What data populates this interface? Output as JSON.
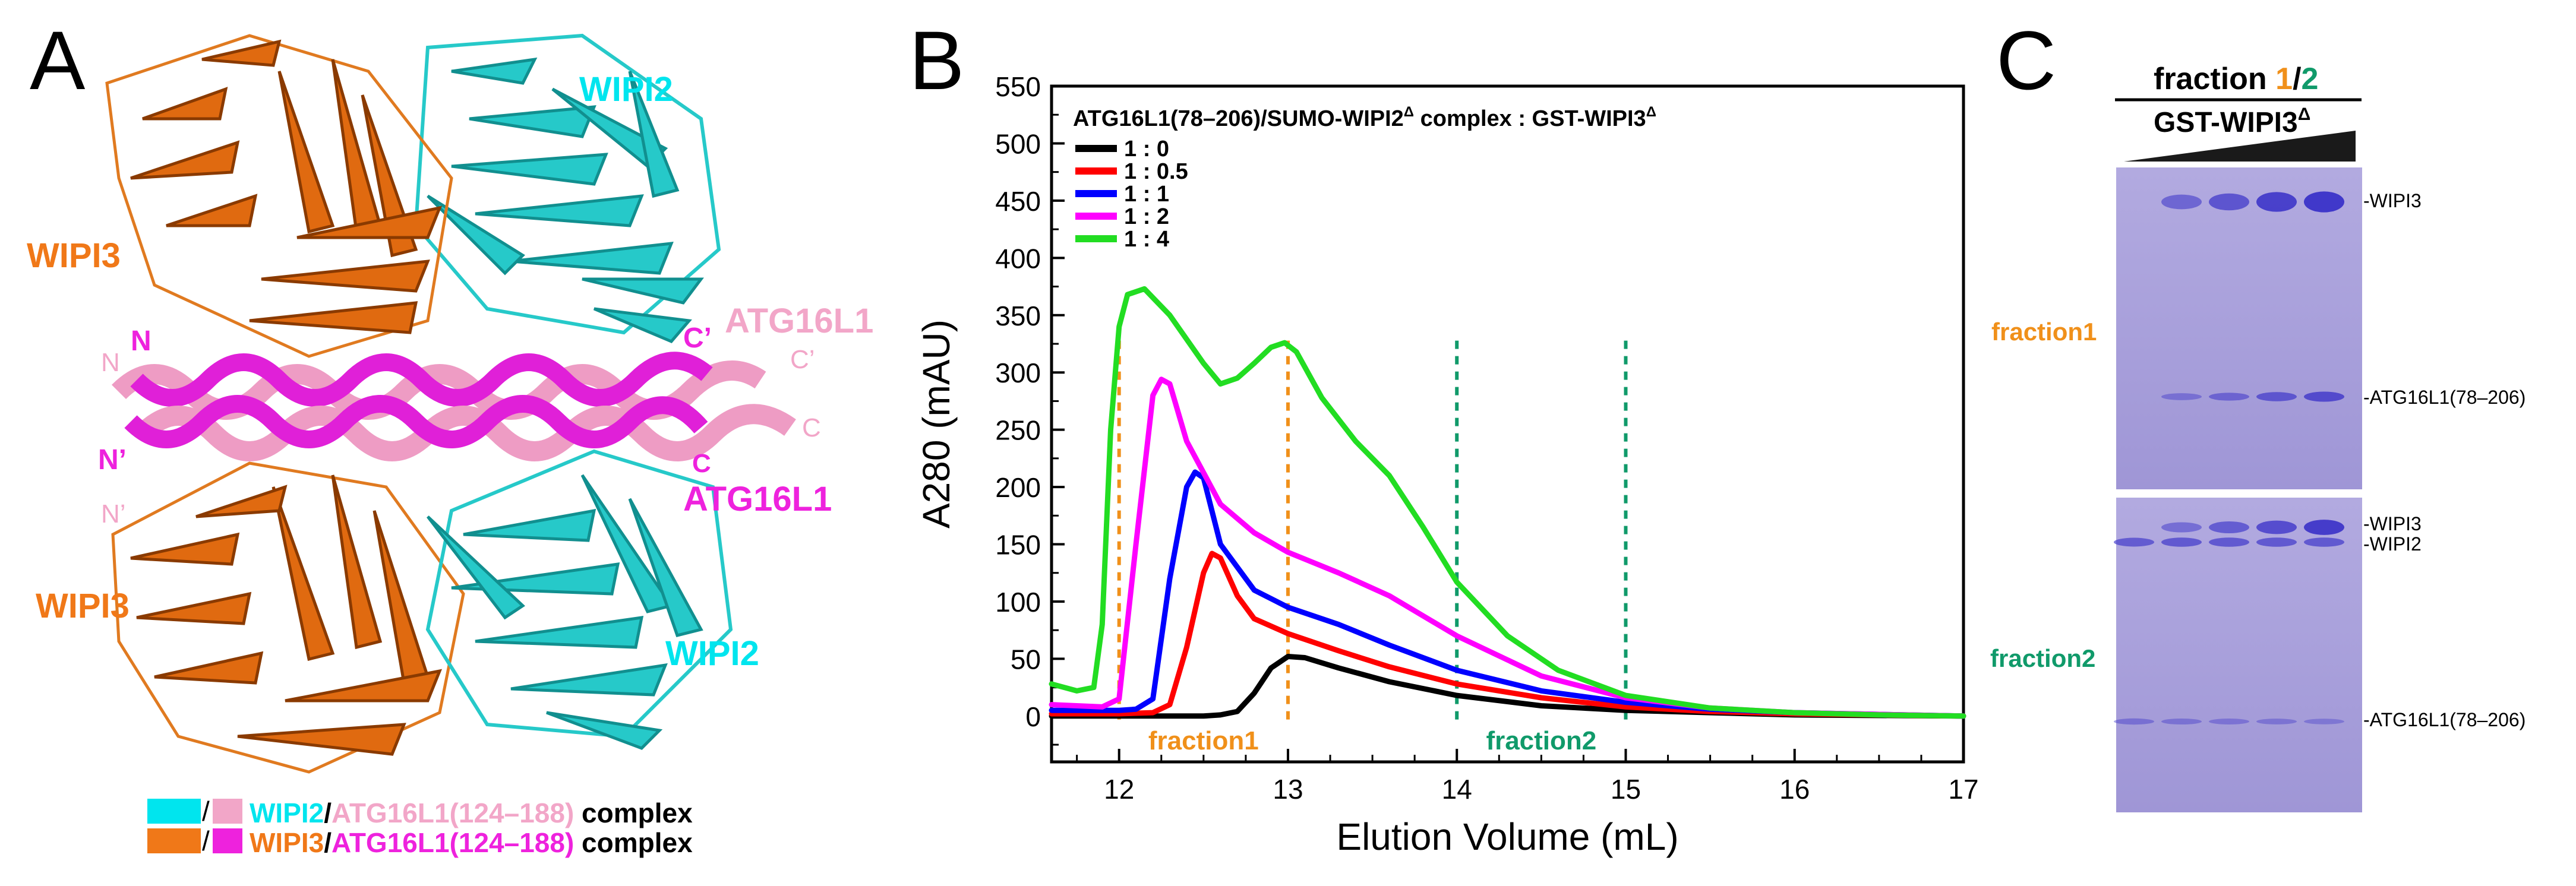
{
  "panel_labels": {
    "a": "A",
    "b": "B",
    "c": "C"
  },
  "panel_a": {
    "labels": {
      "wipi2_top": "WIPI2",
      "wipi3_top": "WIPI3",
      "wipi3_bottom": "WIPI3",
      "wipi2_bottom": "WIPI2",
      "atg16l1_pink": "ATG16L1",
      "atg16l1_magenta": "ATG16L1",
      "n_magenta": "N",
      "n_pink": "N",
      "n_prime_magenta": "N’",
      "n_prime_pink": "N’",
      "c_prime_magenta": "C’",
      "c_prime_pink": "C’",
      "c_pink": "C",
      "c_magenta": "C"
    },
    "legend": [
      {
        "protein": "WIPI2",
        "slash": "/",
        "peptide": "ATG16L1(124–188)",
        "suffix": " complex",
        "protein_color": "#00e5ee",
        "peptide_color": "#f2a6c8"
      },
      {
        "protein": "WIPI3",
        "slash": "/",
        "peptide": "ATG16L1(124–188)",
        "suffix": " complex",
        "protein_color": "#f07818",
        "peptide_color": "#ee22dd"
      }
    ],
    "colors": {
      "wipi2": "#26c9c9",
      "wipi3": "#e06a10",
      "atg_pink": "#ee9cc4",
      "atg_magenta": "#e020d8"
    }
  },
  "chart_data": {
    "type": "line",
    "title": "ATG16L1(78–206)/SUMO-WIPI2",
    "title_sup1": "Δ",
    "title_mid": " complex : GST-WIPI3",
    "title_sup2": "Δ",
    "xlabel": "Elution Volume (mL)",
    "ylabel": "A280 (mAU)",
    "xlim": [
      11.6,
      17
    ],
    "ylim": [
      -40,
      550
    ],
    "xticks": [
      12,
      13,
      14,
      15,
      16,
      17
    ],
    "yticks": [
      0,
      50,
      100,
      150,
      200,
      250,
      300,
      350,
      400,
      450,
      500,
      550
    ],
    "series": [
      {
        "name": "1 : 0",
        "color": "#000000",
        "x": [
          11.6,
          12.5,
          12.6,
          12.7,
          12.8,
          12.9,
          13.0,
          13.1,
          13.3,
          13.6,
          14.0,
          14.5,
          15.0,
          15.5,
          16.0,
          17.0
        ],
        "y": [
          0,
          0,
          1,
          4,
          20,
          42,
          52,
          51,
          42,
          30,
          18,
          9,
          5,
          3,
          1,
          0
        ]
      },
      {
        "name": "1 : 0.5",
        "color": "#ff0000",
        "x": [
          11.6,
          12.0,
          12.2,
          12.3,
          12.4,
          12.5,
          12.55,
          12.6,
          12.7,
          12.8,
          13.0,
          13.3,
          13.6,
          14.0,
          14.5,
          15.0,
          15.5,
          16.0,
          17.0
        ],
        "y": [
          2,
          2,
          3,
          10,
          60,
          125,
          142,
          138,
          105,
          85,
          72,
          57,
          43,
          28,
          16,
          8,
          4,
          2,
          0
        ]
      },
      {
        "name": "1 : 1",
        "color": "#0000ff",
        "x": [
          11.6,
          12.0,
          12.1,
          12.2,
          12.3,
          12.4,
          12.45,
          12.5,
          12.6,
          12.8,
          13.0,
          13.3,
          13.6,
          14.0,
          14.5,
          15.0,
          15.5,
          16.0,
          17.0
        ],
        "y": [
          5,
          5,
          6,
          15,
          120,
          200,
          213,
          208,
          150,
          110,
          95,
          80,
          62,
          40,
          22,
          12,
          6,
          3,
          0
        ]
      },
      {
        "name": "1 : 2",
        "color": "#ff00ff",
        "x": [
          11.6,
          11.9,
          12.0,
          12.1,
          12.2,
          12.25,
          12.3,
          12.4,
          12.6,
          12.8,
          13.0,
          13.3,
          13.6,
          14.0,
          14.5,
          15.0,
          15.5,
          16.0,
          17.0
        ],
        "y": [
          10,
          8,
          15,
          150,
          280,
          294,
          290,
          240,
          185,
          160,
          143,
          125,
          105,
          70,
          35,
          16,
          7,
          3,
          0
        ]
      },
      {
        "name": "1 : 4",
        "color": "#22dd22",
        "x": [
          11.6,
          11.75,
          11.85,
          11.9,
          11.95,
          12.0,
          12.05,
          12.15,
          12.3,
          12.5,
          12.6,
          12.7,
          12.8,
          12.9,
          12.98,
          13.05,
          13.2,
          13.4,
          13.6,
          13.8,
          14.0,
          14.3,
          14.6,
          15.0,
          15.5,
          16.0,
          16.5,
          17.0
        ],
        "y": [
          28,
          22,
          25,
          80,
          250,
          340,
          368,
          373,
          350,
          308,
          290,
          295,
          308,
          322,
          326,
          318,
          278,
          240,
          210,
          165,
          117,
          70,
          40,
          18,
          7,
          3,
          1,
          0
        ]
      }
    ],
    "fractions": [
      {
        "name": "fraction1",
        "label": "fraction1",
        "x_start": 12,
        "x_end": 13,
        "color": "#f0901a"
      },
      {
        "name": "fraction2",
        "label": "fraction2",
        "x_start": 14,
        "x_end": 15,
        "color": "#109a6a"
      }
    ],
    "legend_position": "top-left"
  },
  "panel_c": {
    "header_word": "fraction ",
    "header_1": "1",
    "header_slash": "/",
    "header_2": "2",
    "header_1_color": "#f0901a",
    "header_2_color": "#109a6a",
    "gradient_label": "GST-WIPI3",
    "gradient_sup": "Δ",
    "fraction1_label": "fraction1",
    "fraction2_label": "fraction2",
    "bands_top": [
      "-WIPI3",
      "-ATG16L1(78–206)"
    ],
    "bands_bottom": [
      "-WIPI3",
      "-WIPI2",
      "-ATG16L1(78–206)"
    ],
    "gel_color": "#a49ad8",
    "band_color": "#3a32c8",
    "lane_intensity_wipi3": [
      0,
      0.45,
      0.65,
      0.9,
      1.0
    ],
    "lane_intensity_atg_top": [
      0,
      0.25,
      0.4,
      0.6,
      0.75
    ],
    "lane_intensity_wipi3_bottom": [
      0,
      0.35,
      0.55,
      0.75,
      0.95
    ],
    "lane_intensity_wipi2_bottom": [
      0.55,
      0.6,
      0.6,
      0.6,
      0.6
    ],
    "lane_intensity_atg_bottom": [
      0.25,
      0.22,
      0.2,
      0.18,
      0.15
    ]
  }
}
